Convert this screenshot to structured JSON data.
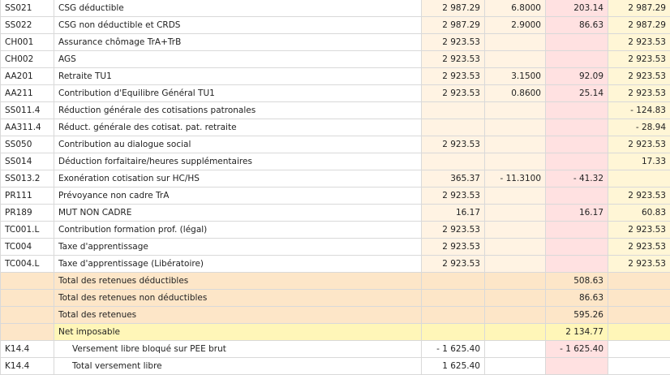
{
  "rows": [
    {
      "code": "SS021",
      "label": "CSG déductible",
      "base": "2 987.29",
      "rate": "6.8000",
      "sal": "203.14",
      "pat": "2 987.29"
    },
    {
      "code": "SS022",
      "label": "CSG non déductible et CRDS",
      "base": "2 987.29",
      "rate": "2.9000",
      "sal": "86.63",
      "pat": "2 987.29"
    },
    {
      "code": "CH001",
      "label": "Assurance chômage TrA+TrB",
      "base": "2 923.53",
      "rate": "",
      "sal": "",
      "pat": "2 923.53"
    },
    {
      "code": "CH002",
      "label": "AGS",
      "base": "2 923.53",
      "rate": "",
      "sal": "",
      "pat": "2 923.53"
    },
    {
      "code": "AA201",
      "label": "Retraite TU1",
      "base": "2 923.53",
      "rate": "3.1500",
      "sal": "92.09",
      "pat": "2 923.53"
    },
    {
      "code": "AA211",
      "label": "Contribution d'Equilibre Général TU1",
      "base": "2 923.53",
      "rate": "0.8600",
      "sal": "25.14",
      "pat": "2 923.53"
    },
    {
      "code": "SS011.4",
      "label": "Réduction générale des cotisations patronales",
      "base": "",
      "rate": "",
      "sal": "",
      "pat": "- 124.83"
    },
    {
      "code": "AA311.4",
      "label": "Réduct. générale des cotisat. pat. retraite",
      "base": "",
      "rate": "",
      "sal": "",
      "pat": "- 28.94"
    },
    {
      "code": "SS050",
      "label": "Contribution au dialogue social",
      "base": "2 923.53",
      "rate": "",
      "sal": "",
      "pat": "2 923.53"
    },
    {
      "code": "SS014",
      "label": "Déduction forfaitaire/heures supplémentaires",
      "base": "",
      "rate": "",
      "sal": "",
      "pat": "17.33"
    },
    {
      "code": "SS013.2",
      "label": "Exonération cotisation sur HC/HS",
      "base": "365.37",
      "rate": "- 11.3100",
      "sal": "- 41.32",
      "pat": ""
    },
    {
      "code": "PR111",
      "label": "Prévoyance non cadre TrA",
      "base": "2 923.53",
      "rate": "",
      "sal": "",
      "pat": "2 923.53"
    },
    {
      "code": "PR189",
      "label": "MUT NON CADRE",
      "base": "16.17",
      "rate": "",
      "sal": "16.17",
      "pat": "60.83"
    },
    {
      "code": "TC001.L",
      "label": "Contribution formation prof. (légal)",
      "base": "2 923.53",
      "rate": "",
      "sal": "",
      "pat": "2 923.53"
    },
    {
      "code": "TC004",
      "label": "Taxe d'apprentissage",
      "base": "2 923.53",
      "rate": "",
      "sal": "",
      "pat": "2 923.53"
    },
    {
      "code": "TC004.L",
      "label": "Taxe d'apprentissage (Libératoire)",
      "base": "2 923.53",
      "rate": "",
      "sal": "",
      "pat": "2 923.53"
    }
  ],
  "totals": [
    {
      "label": "Total des retenues déductibles",
      "sal": "508.63"
    },
    {
      "label": "Total des retenues non déductibles",
      "sal": "86.63"
    },
    {
      "label": "Total des retenues",
      "sal": "595.26"
    }
  ],
  "net": {
    "label": "Net imposable",
    "sal": "2 134.77"
  },
  "extra_rows": [
    {
      "code": "K14.4",
      "label": "Versement libre bloqué sur PEE brut",
      "base": "- 1 625.40",
      "rate": "",
      "sal": "- 1 625.40",
      "pat": ""
    },
    {
      "code": "K14.4",
      "label": "Total versement libre",
      "base": "1 625.40",
      "rate": "",
      "sal": "",
      "pat": ""
    }
  ]
}
